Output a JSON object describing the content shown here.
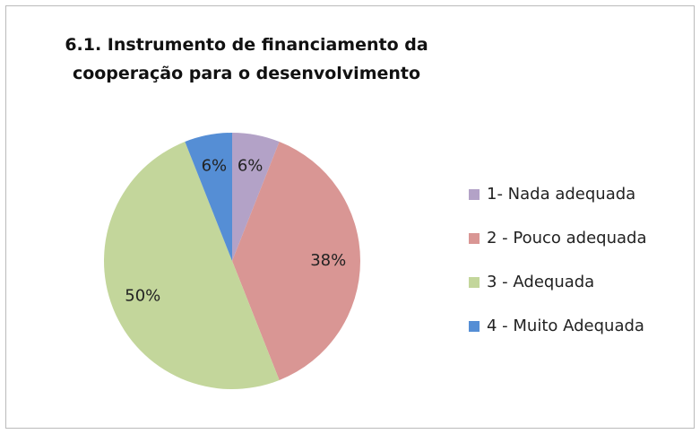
{
  "chart_data": {
    "type": "pie",
    "title": "6.1. Instrumento de financiamento da cooperação para o desenvolvimento",
    "categories": [
      "1- Nada adequada",
      "2 - Pouco adequada",
      "3 - Adequada",
      "4 - Muito Adequada"
    ],
    "values": [
      6,
      38,
      50,
      6
    ],
    "value_labels": [
      "6%",
      "38%",
      "50%",
      "6%"
    ],
    "colors": [
      "#b3a2c7",
      "#d99694",
      "#c3d69b",
      "#558ed5"
    ],
    "legend": "right"
  }
}
